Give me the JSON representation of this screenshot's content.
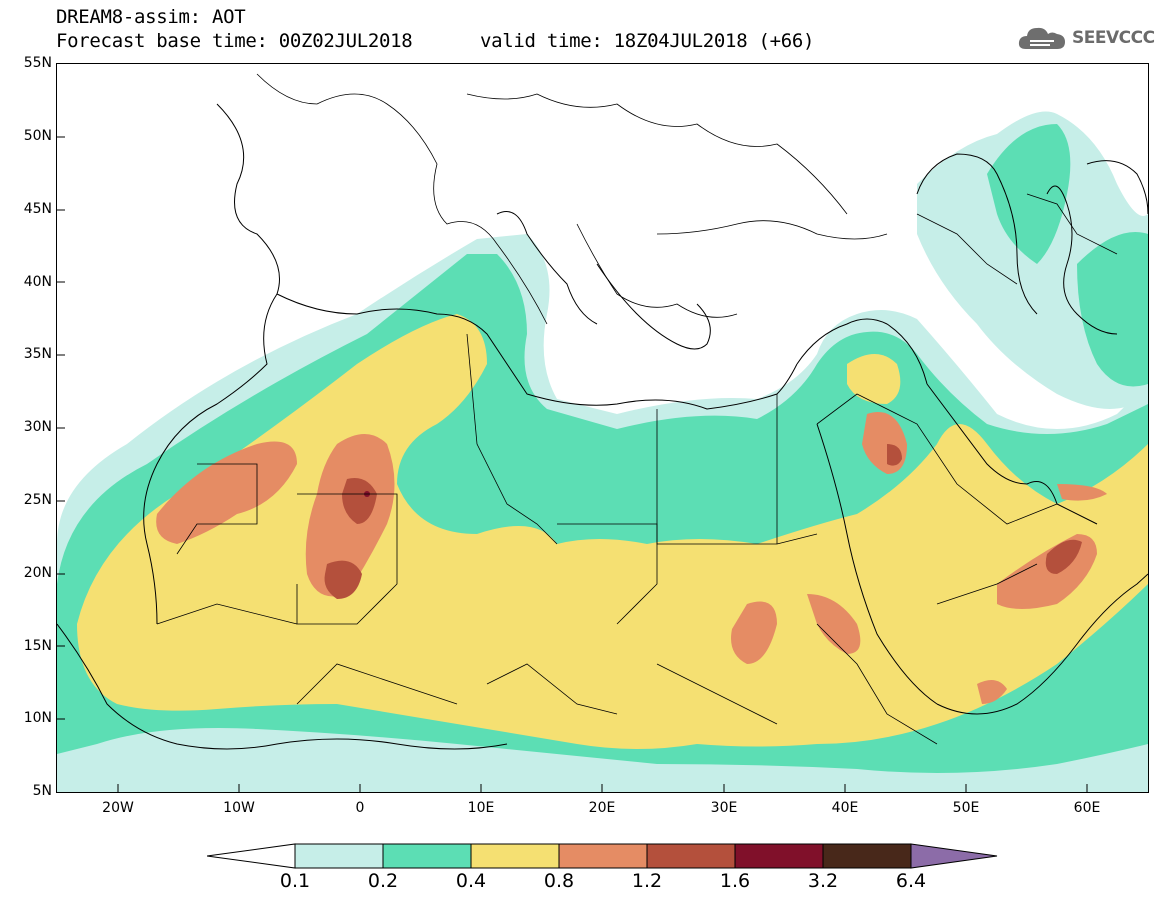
{
  "header": {
    "title": "DREAM8-assim: AOT",
    "base_time": "Forecast base time: 00Z02JUL2018",
    "valid_time": "valid time: 18Z04JUL2018 (+66)"
  },
  "logo": {
    "text": "SEEVCCC",
    "icon": "cloud-icon"
  },
  "map": {
    "variable": "AOT",
    "region": {
      "lon_range": [
        -25,
        65
      ],
      "lat_range": [
        5,
        55
      ]
    },
    "lat_labels": [
      "55N",
      "50N",
      "45N",
      "40N",
      "35N",
      "30N",
      "25N",
      "20N",
      "15N",
      "10N",
      "5N"
    ],
    "lon_labels": [
      "20W",
      "10W",
      "0",
      "10E",
      "20E",
      "30E",
      "40E",
      "50E",
      "60E"
    ]
  },
  "legend": {
    "levels": [
      "0.1",
      "0.2",
      "0.4",
      "0.8",
      "1.2",
      "1.6",
      "3.2",
      "6.4"
    ],
    "colors": [
      "#c6eee8",
      "#5cdeb4",
      "#f5e072",
      "#e58c64",
      "#b4503c",
      "#80102a",
      "#48281a"
    ],
    "under_color": "#ffffff",
    "over_color": "#8c6ca8"
  }
}
